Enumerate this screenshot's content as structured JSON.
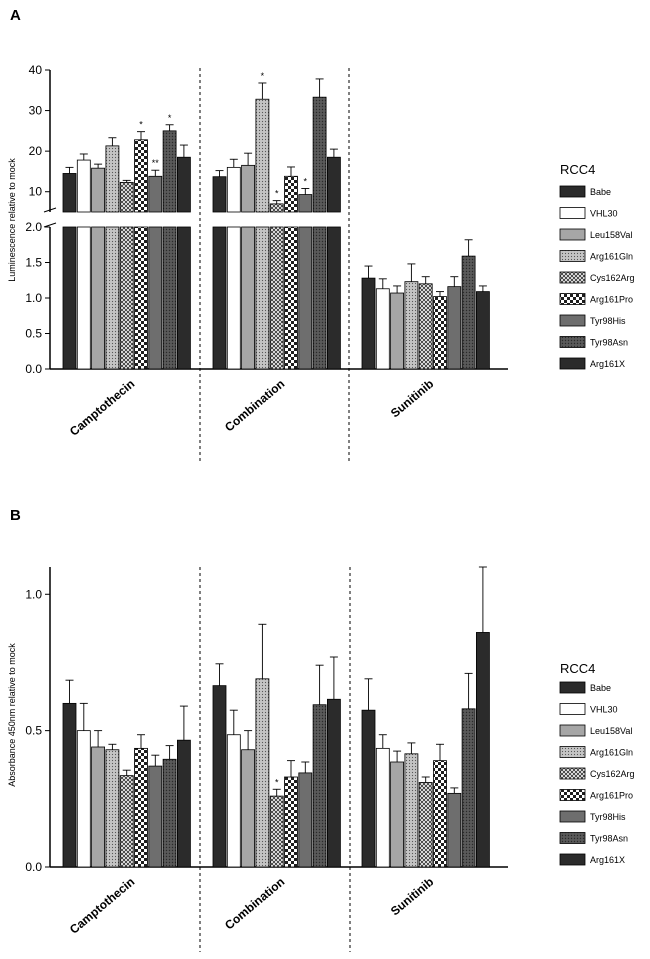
{
  "legend": {
    "title": "RCC4",
    "items": [
      {
        "label": "Babe",
        "fill": "#2b2b2b",
        "pattern": "solid"
      },
      {
        "label": "VHL30",
        "fill": "#ffffff",
        "pattern": "solid"
      },
      {
        "label": "Leu158Val",
        "fill": "#a6a6a6",
        "pattern": "solid"
      },
      {
        "label": "Arg161Gln",
        "fill": "#b8b8b8",
        "pattern": "dots"
      },
      {
        "label": "Cys162Arg",
        "fill": "#9a9a9a",
        "pattern": "cross"
      },
      {
        "label": "Arg161Pro",
        "fill": "#3a3a3a",
        "pattern": "checker"
      },
      {
        "label": "Tyr98His",
        "fill": "#6e6e6e",
        "pattern": "solid"
      },
      {
        "label": "Tyr98Asn",
        "fill": "#5e5e5e",
        "pattern": "dense"
      },
      {
        "label": "Arg161X",
        "fill": "#2b2b2b",
        "pattern": "solid"
      }
    ]
  },
  "chart_data": [
    {
      "panel": "A",
      "type": "bar",
      "ylabel": "Luminescence relative to mock",
      "categories": [
        "Camptothecin",
        "Combination",
        "Sunitinib"
      ],
      "axis_break": true,
      "lower_ylim": [
        0,
        2.0
      ],
      "lower_ticks": [
        "0.0",
        "0.5",
        "1.0",
        "1.5",
        "2.0"
      ],
      "upper_ylim": [
        5,
        40
      ],
      "upper_ticks": [
        "10",
        "20",
        "30",
        "40"
      ],
      "series": [
        {
          "name": "Babe",
          "values": [
            14.5,
            13.7,
            1.28
          ],
          "errors": [
            1.5,
            1.5,
            0.17
          ],
          "sig": [
            "",
            "",
            ""
          ]
        },
        {
          "name": "VHL30",
          "values": [
            17.8,
            16.0,
            1.13
          ],
          "errors": [
            1.5,
            2.0,
            0.14
          ],
          "sig": [
            "",
            "",
            ""
          ]
        },
        {
          "name": "Leu158Val",
          "values": [
            15.8,
            16.5,
            1.07
          ],
          "errors": [
            1.0,
            3.0,
            0.1
          ],
          "sig": [
            "",
            "",
            ""
          ]
        },
        {
          "name": "Arg161Gln",
          "values": [
            21.3,
            32.8,
            1.23
          ],
          "errors": [
            2.0,
            4.0,
            0.25
          ],
          "sig": [
            "",
            "*",
            ""
          ]
        },
        {
          "name": "Cys162Arg",
          "values": [
            12.3,
            7.0,
            1.2
          ],
          "errors": [
            0.5,
            0.8,
            0.1
          ],
          "sig": [
            "",
            "*",
            ""
          ]
        },
        {
          "name": "Arg161Pro",
          "values": [
            22.8,
            13.8,
            1.02
          ],
          "errors": [
            2.0,
            2.3,
            0.07
          ],
          "sig": [
            "*",
            "",
            ""
          ]
        },
        {
          "name": "Tyr98His",
          "values": [
            13.8,
            9.3,
            1.16
          ],
          "errors": [
            1.5,
            1.5,
            0.14
          ],
          "sig": [
            "**",
            "*",
            ""
          ]
        },
        {
          "name": "Tyr98Asn",
          "values": [
            25.0,
            33.3,
            1.59
          ],
          "errors": [
            1.5,
            4.5,
            0.23
          ],
          "sig": [
            "*",
            "",
            ""
          ]
        },
        {
          "name": "Arg161X",
          "values": [
            18.5,
            18.5,
            1.09
          ],
          "errors": [
            3.0,
            2.0,
            0.08
          ],
          "sig": [
            "",
            "",
            ""
          ]
        }
      ]
    },
    {
      "panel": "B",
      "type": "bar",
      "ylabel": "Absorbance 450nm relative to mock",
      "categories": [
        "Camptothecin",
        "Combination",
        "Sunitinib"
      ],
      "ylim": [
        0,
        1.1
      ],
      "ticks": [
        "0.0",
        "0.5",
        "1.0"
      ],
      "series": [
        {
          "name": "Babe",
          "values": [
            0.6,
            0.665,
            0.575
          ],
          "errors": [
            0.085,
            0.08,
            0.115
          ],
          "sig": [
            "",
            "",
            ""
          ]
        },
        {
          "name": "VHL30",
          "values": [
            0.5,
            0.485,
            0.435
          ],
          "errors": [
            0.1,
            0.09,
            0.05
          ],
          "sig": [
            "",
            "",
            ""
          ]
        },
        {
          "name": "Leu158Val",
          "values": [
            0.44,
            0.43,
            0.385
          ],
          "errors": [
            0.06,
            0.07,
            0.04
          ],
          "sig": [
            "",
            "",
            ""
          ]
        },
        {
          "name": "Arg161Gln",
          "values": [
            0.43,
            0.69,
            0.415
          ],
          "errors": [
            0.02,
            0.2,
            0.04
          ],
          "sig": [
            "",
            "",
            ""
          ]
        },
        {
          "name": "Cys162Arg",
          "values": [
            0.335,
            0.26,
            0.31
          ],
          "errors": [
            0.02,
            0.025,
            0.02
          ],
          "sig": [
            "",
            "*",
            ""
          ]
        },
        {
          "name": "Arg161Pro",
          "values": [
            0.435,
            0.33,
            0.39
          ],
          "errors": [
            0.05,
            0.06,
            0.06
          ],
          "sig": [
            "",
            "",
            ""
          ]
        },
        {
          "name": "Tyr98His",
          "values": [
            0.37,
            0.345,
            0.27
          ],
          "errors": [
            0.04,
            0.04,
            0.02
          ],
          "sig": [
            "",
            "",
            ""
          ]
        },
        {
          "name": "Tyr98Asn",
          "values": [
            0.395,
            0.595,
            0.58
          ],
          "errors": [
            0.05,
            0.145,
            0.13
          ],
          "sig": [
            "",
            "",
            ""
          ]
        },
        {
          "name": "Arg161X",
          "values": [
            0.465,
            0.615,
            0.86
          ],
          "errors": [
            0.125,
            0.155,
            0.24
          ],
          "sig": [
            "",
            "",
            ""
          ]
        }
      ]
    }
  ]
}
